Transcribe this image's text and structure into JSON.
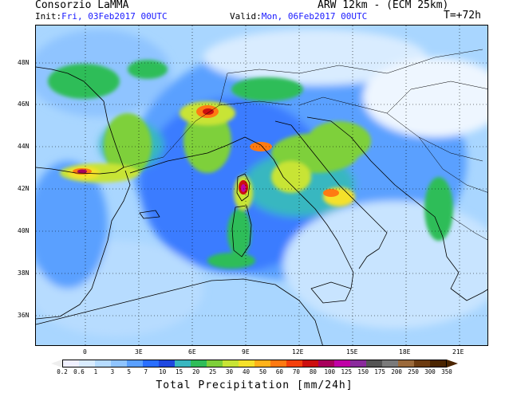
{
  "header": {
    "org": "Consorzio LaMMA",
    "model": "ARW 12km - (ECM 25km)",
    "init_label": "Init:",
    "init_value": "Fri, 03Feb2017 00UTC",
    "valid_label": "Valid:",
    "valid_value": "Mon, 06Feb2017 00UTC",
    "lead": "T=+72h"
  },
  "axes": {
    "lon_ticks": [
      "0",
      "3E",
      "6E",
      "9E",
      "12E",
      "15E",
      "18E",
      "21E"
    ],
    "lat_ticks": [
      "48N",
      "46N",
      "44N",
      "42N",
      "40N",
      "38N",
      "36N"
    ]
  },
  "colorbar": {
    "title": "Total Precipitation [mm/24h]",
    "labels": [
      "0.2",
      "0.6",
      "1",
      "3",
      "5",
      "7",
      "10",
      "15",
      "20",
      "25",
      "30",
      "40",
      "50",
      "60",
      "70",
      "80",
      "100",
      "125",
      "150",
      "175",
      "200",
      "250",
      "300",
      "350"
    ],
    "colors": [
      "#f0f0ff",
      "#d9ecff",
      "#b7dcff",
      "#8fc4ff",
      "#5aa0ff",
      "#2a6fff",
      "#1f48e0",
      "#39b7c0",
      "#2fbd59",
      "#7ed03a",
      "#c8e436",
      "#f5e12a",
      "#ffb21a",
      "#ff7a12",
      "#f4400c",
      "#cc0f0f",
      "#a8005c",
      "#c000a6",
      "#8a2a9c",
      "#555555",
      "#7a7a7a",
      "#9b6a3b",
      "#6d3c11",
      "#4a2400"
    ]
  }
}
